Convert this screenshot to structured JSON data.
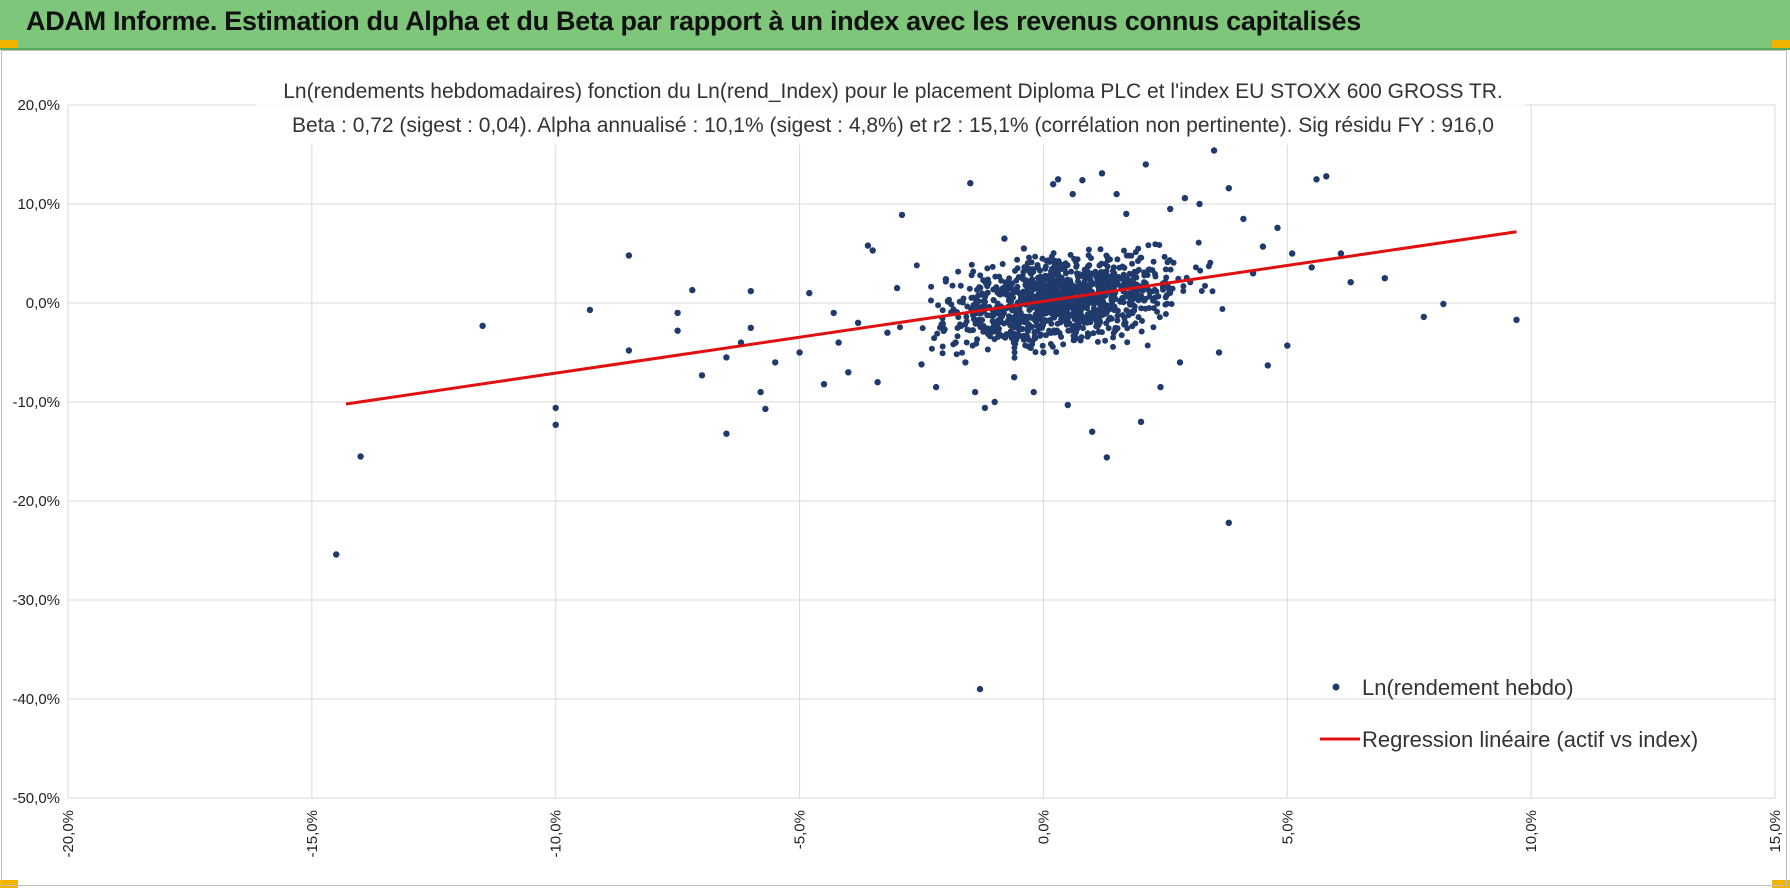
{
  "header": {
    "title": "ADAM Informe. Estimation du Alpha et du Beta par rapport à un index avec les revenus connus capitalisés",
    "background": "#7dc67a"
  },
  "chart_data": {
    "type": "scatter",
    "title": "Ln(rendements hebdomadaires) fonction du Ln(rend_Index) pour le placement Diploma PLC et l'index EU STOXX 600 GROSS TR.",
    "subtitle": "Beta : 0,72 (sigest : 0,04).  Alpha annualisé : 10,1% (sigest : 4,8%) et r2 : 15,1% (corrélation non pertinente). Sig résidu FY : 916,0",
    "xlabel": "",
    "ylabel": "",
    "xlim": [
      -0.2,
      0.15
    ],
    "ylim": [
      -0.5,
      0.2
    ],
    "x_ticks": [
      "-20,0%",
      "-15,0%",
      "-10,0%",
      "-5,0%",
      "0,0%",
      "5,0%",
      "10,0%",
      "15,0%"
    ],
    "y_ticks": [
      "20,0%",
      "10,0%",
      "0,0%",
      "-10,0%",
      "-20,0%",
      "-30,0%",
      "-40,0%",
      "-50,0%"
    ],
    "grid": true,
    "legend_position": "bottom-right",
    "series": [
      {
        "name": "Ln(rendement hebdo)",
        "type": "scatter",
        "color": "#1f3a6b",
        "points": [
          [
            -0.145,
            -0.254
          ],
          [
            -0.14,
            -0.155
          ],
          [
            -0.115,
            -0.023
          ],
          [
            -0.1,
            -0.106
          ],
          [
            -0.1,
            -0.123
          ],
          [
            -0.093,
            -0.007
          ],
          [
            -0.085,
            0.048
          ],
          [
            -0.085,
            -0.048
          ],
          [
            -0.075,
            -0.01
          ],
          [
            -0.075,
            -0.028
          ],
          [
            -0.072,
            0.013
          ],
          [
            -0.07,
            -0.073
          ],
          [
            -0.065,
            -0.132
          ],
          [
            -0.065,
            -0.055
          ],
          [
            -0.062,
            -0.04
          ],
          [
            -0.06,
            0.012
          ],
          [
            -0.06,
            -0.025
          ],
          [
            -0.058,
            -0.09
          ],
          [
            -0.057,
            -0.107
          ],
          [
            -0.055,
            -0.06
          ],
          [
            -0.05,
            -0.05
          ],
          [
            -0.048,
            0.01
          ],
          [
            -0.045,
            -0.082
          ],
          [
            -0.043,
            -0.01
          ],
          [
            -0.042,
            -0.04
          ],
          [
            -0.04,
            -0.07
          ],
          [
            -0.038,
            -0.02
          ],
          [
            -0.036,
            0.058
          ],
          [
            -0.035,
            0.053
          ],
          [
            -0.034,
            -0.08
          ],
          [
            -0.032,
            -0.03
          ],
          [
            -0.03,
            0.015
          ],
          [
            -0.029,
            0.089
          ],
          [
            -0.025,
            -0.062
          ],
          [
            -0.022,
            -0.085
          ],
          [
            -0.02,
            0.024
          ],
          [
            -0.018,
            -0.04
          ],
          [
            -0.016,
            -0.06
          ],
          [
            -0.015,
            0.121
          ],
          [
            -0.014,
            -0.09
          ],
          [
            -0.013,
            -0.39
          ],
          [
            -0.012,
            -0.106
          ],
          [
            -0.01,
            -0.1
          ],
          [
            -0.008,
            0.065
          ],
          [
            -0.006,
            -0.075
          ],
          [
            -0.004,
            0.055
          ],
          [
            -0.002,
            -0.09
          ],
          [
            0.0,
            -0.05
          ],
          [
            0.002,
            0.12
          ],
          [
            0.003,
            0.125
          ],
          [
            0.005,
            -0.103
          ],
          [
            0.006,
            0.11
          ],
          [
            0.008,
            0.124
          ],
          [
            0.01,
            -0.13
          ],
          [
            0.012,
            0.131
          ],
          [
            0.013,
            -0.156
          ],
          [
            0.015,
            0.11
          ],
          [
            0.017,
            0.09
          ],
          [
            0.02,
            -0.12
          ],
          [
            0.021,
            0.14
          ],
          [
            0.024,
            -0.085
          ],
          [
            0.026,
            0.095
          ],
          [
            0.028,
            -0.06
          ],
          [
            0.029,
            0.106
          ],
          [
            0.032,
            0.1
          ],
          [
            0.035,
            0.154
          ],
          [
            0.036,
            -0.05
          ],
          [
            0.038,
            0.116
          ],
          [
            0.038,
            -0.222
          ],
          [
            0.041,
            0.085
          ],
          [
            0.043,
            0.03
          ],
          [
            0.045,
            0.057
          ],
          [
            0.046,
            -0.063
          ],
          [
            0.048,
            0.076
          ],
          [
            0.05,
            -0.043
          ],
          [
            0.051,
            0.05
          ],
          [
            0.055,
            0.036
          ],
          [
            0.056,
            0.125
          ],
          [
            0.058,
            0.128
          ],
          [
            0.061,
            0.05
          ],
          [
            0.063,
            0.021
          ],
          [
            0.07,
            0.025
          ],
          [
            0.078,
            -0.014
          ],
          [
            0.082,
            -0.001
          ],
          [
            0.097,
            -0.017
          ]
        ]
      },
      {
        "name": "Regression linéaire (actif vs index)",
        "type": "line",
        "color": "#e01010",
        "points": [
          [
            -0.143,
            -0.102
          ],
          [
            0.097,
            0.072
          ]
        ]
      }
    ]
  }
}
